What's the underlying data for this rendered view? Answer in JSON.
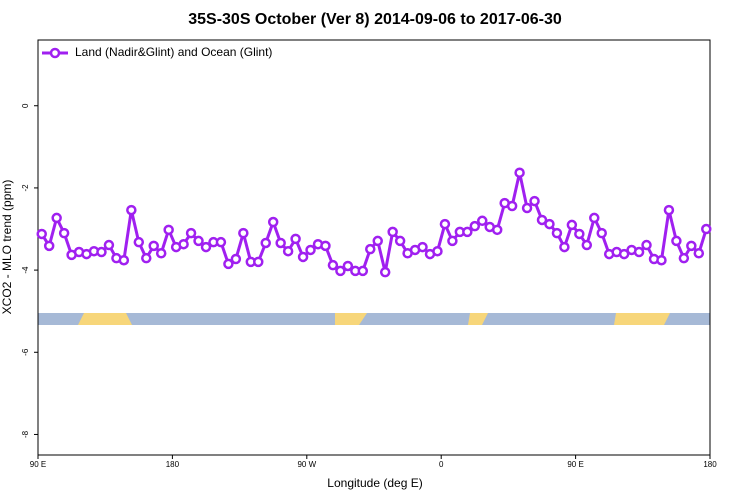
{
  "chart_data": {
    "type": "line",
    "title": "35S-30S October (Ver 8)   2014-09-06 to 2017-06-30",
    "xlabel": "Longitude (deg E)",
    "ylabel": "XCO2 - MLO trend (ppm)",
    "legend": "top-left",
    "xlim": [
      90,
      540
    ],
    "xticks": [
      {
        "value": 90,
        "label": "90 E"
      },
      180,
      {
        "value": 270,
        "label": "90 W"
      },
      {
        "value": 360,
        "label": "0"
      },
      {
        "value": 450,
        "label": "90 E"
      },
      {
        "value": 540,
        "label": "180"
      }
    ],
    "ylim": [
      -8.5,
      1.6
    ],
    "yticks": [
      0,
      -2,
      -4,
      -6,
      -8
    ],
    "x": [
      92.5,
      97.5,
      102.5,
      107.5,
      112.5,
      117.5,
      122.5,
      127.5,
      132.5,
      137.5,
      142.5,
      147.5,
      152.5,
      157.5,
      162.5,
      167.5,
      172.5,
      177.5,
      182.5,
      187.5,
      192.5,
      197.5,
      202.5,
      207.5,
      212.5,
      217.5,
      222.5,
      227.5,
      232.5,
      237.5,
      242.5,
      247.5,
      252.5,
      257.5,
      262.5,
      267.5,
      272.5,
      277.5,
      282.5,
      287.5,
      292.5,
      297.5,
      302.5,
      307.5,
      312.5,
      317.5,
      322.5,
      327.5,
      332.5,
      337.5,
      342.5,
      347.5,
      352.5,
      357.5,
      362.5,
      367.5,
      372.5,
      377.5,
      382.5,
      387.5,
      392.5,
      397.5,
      402.5,
      407.5,
      412.5,
      417.5,
      422.5,
      427.5,
      432.5,
      437.5,
      442.5,
      447.5,
      452.5,
      457.5,
      462.5,
      467.5,
      472.5,
      477.5,
      482.5,
      487.5,
      492.5,
      497.5,
      502.5,
      507.5,
      512.5,
      517.5,
      522.5,
      527.5,
      532.5,
      537.5
    ],
    "series": [
      {
        "name": "Land (Nadir&Glint) and Ocean (Glint)",
        "color": "#a020f0",
        "values": [
          -3.12,
          -3.41,
          -2.73,
          -3.1,
          -3.63,
          -3.56,
          -3.61,
          -3.54,
          -3.56,
          -3.39,
          -3.71,
          -3.76,
          -2.54,
          -3.32,
          -3.71,
          -3.41,
          -3.59,
          -3.02,
          -3.44,
          -3.37,
          -3.1,
          -3.29,
          -3.44,
          -3.32,
          -3.32,
          -3.85,
          -3.73,
          -3.1,
          -3.8,
          -3.8,
          -3.34,
          -2.83,
          -3.34,
          -3.54,
          -3.24,
          -3.68,
          -3.51,
          -3.37,
          -3.41,
          -3.88,
          -4.02,
          -3.9,
          -4.02,
          -4.02,
          -3.49,
          -3.29,
          -4.05,
          -3.07,
          -3.29,
          -3.59,
          -3.51,
          -3.44,
          -3.61,
          -3.54,
          -2.88,
          -3.29,
          -3.07,
          -3.07,
          -2.93,
          -2.8,
          -2.95,
          -3.02,
          -2.37,
          -2.44,
          -1.63,
          -2.49,
          -2.32,
          -2.78,
          -2.88,
          -3.1,
          -3.44,
          -2.9,
          -3.12,
          -3.39,
          -2.73,
          -3.1,
          -3.61,
          -3.56,
          -3.61,
          -3.51,
          -3.56,
          -3.39,
          -3.73,
          -3.76,
          -2.54,
          -3.29,
          -3.71,
          -3.41,
          -3.59,
          -3.0
        ]
      }
    ]
  }
}
